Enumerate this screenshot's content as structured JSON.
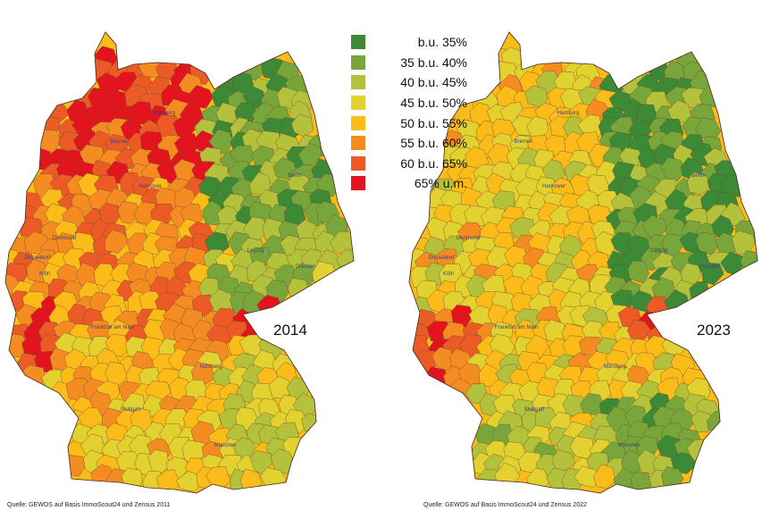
{
  "legend": {
    "items": [
      {
        "label": "b.u. 35%",
        "color": "#3d8a36"
      },
      {
        "label": "35 b.u. 40%",
        "color": "#79a63a"
      },
      {
        "label": "40 b.u. 45%",
        "color": "#b3c23a"
      },
      {
        "label": "45 b.u. 50%",
        "color": "#e2d12e"
      },
      {
        "label": "50 b.u. 55%",
        "color": "#fbbc1a"
      },
      {
        "label": "55 b.u. 60%",
        "color": "#f48c22"
      },
      {
        "label": "60 b.u. 65%",
        "color": "#ec5a26"
      },
      {
        "label": "65% u.m.",
        "color": "#e3141e"
      }
    ]
  },
  "maps": [
    {
      "year": "2014",
      "source": "Quelle: GEWOS auf Basis ImmoScout24 und Zensus 2011",
      "cities": [
        "Hamburg",
        "Bremen",
        "Hannover",
        "Berlin",
        "Dortmund",
        "Düsseldorf",
        "Köln",
        "Leipzig",
        "Dresden",
        "Frankfurt am Main",
        "Nürnberg",
        "Stuttgart",
        "München"
      ],
      "palette": [
        "#e3141e",
        "#ec5a26",
        "#f48c22",
        "#fbbc1a",
        "#e2d12e",
        "#b3c23a",
        "#79a63a",
        "#3d8a36"
      ]
    },
    {
      "year": "2023",
      "source": "Quelle: GEWOS auf Basis ImmoScout24 und Zensus 2022",
      "cities": [
        "Hamburg",
        "Bremen",
        "Hannover",
        "Berlin",
        "Dortmund",
        "Düsseldorf",
        "Köln",
        "Leipzig",
        "Dresden",
        "Frankfurt am Main",
        "Nürnberg",
        "Stuttgart",
        "München"
      ],
      "palette": [
        "#e3141e",
        "#ec5a26",
        "#f48c22",
        "#fbbc1a",
        "#e2d12e",
        "#b3c23a",
        "#79a63a",
        "#3d8a36"
      ]
    }
  ]
}
